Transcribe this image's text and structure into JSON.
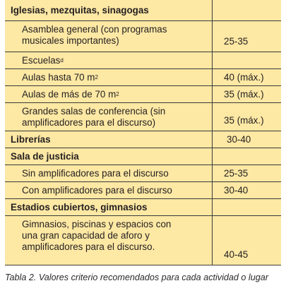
{
  "table": {
    "rows": [
      {
        "label": "Iglesias, mezquitas, sinagogas",
        "value": ""
      },
      {
        "label": "Asamblea general (con programas musicales importantes)",
        "value": "25-35"
      },
      {
        "label": "Escuelas",
        "sup": "d",
        "value": ""
      },
      {
        "label": "Aulas hasta 70 m",
        "sup": "2",
        "value": "40 (máx.)"
      },
      {
        "label": "Aulas de más de 70 m",
        "sup": "2",
        "value": "35 (máx.)"
      },
      {
        "label": "Grandes salas de conferencia (sin amplificadores para el discurso)",
        "value": "35 (máx.)"
      },
      {
        "label": "Librerías",
        "value": "30-40"
      },
      {
        "label": "Sala de justicia",
        "value": ""
      },
      {
        "label": "Sin amplificadores para el discurso",
        "value": "25-35"
      },
      {
        "label": "Con amplificadores para el discurso",
        "value": "30-40"
      },
      {
        "label": "Estadios cubiertos, gimnasios",
        "value": ""
      },
      {
        "label": "Gimnasios, piscinas y espacios con una gran capacidad de aforo y amplificadores para el discurso.",
        "value": "40-45"
      }
    ]
  },
  "caption": "Tabla 2. Valores criterio recomendados para cada actividad o lugar"
}
